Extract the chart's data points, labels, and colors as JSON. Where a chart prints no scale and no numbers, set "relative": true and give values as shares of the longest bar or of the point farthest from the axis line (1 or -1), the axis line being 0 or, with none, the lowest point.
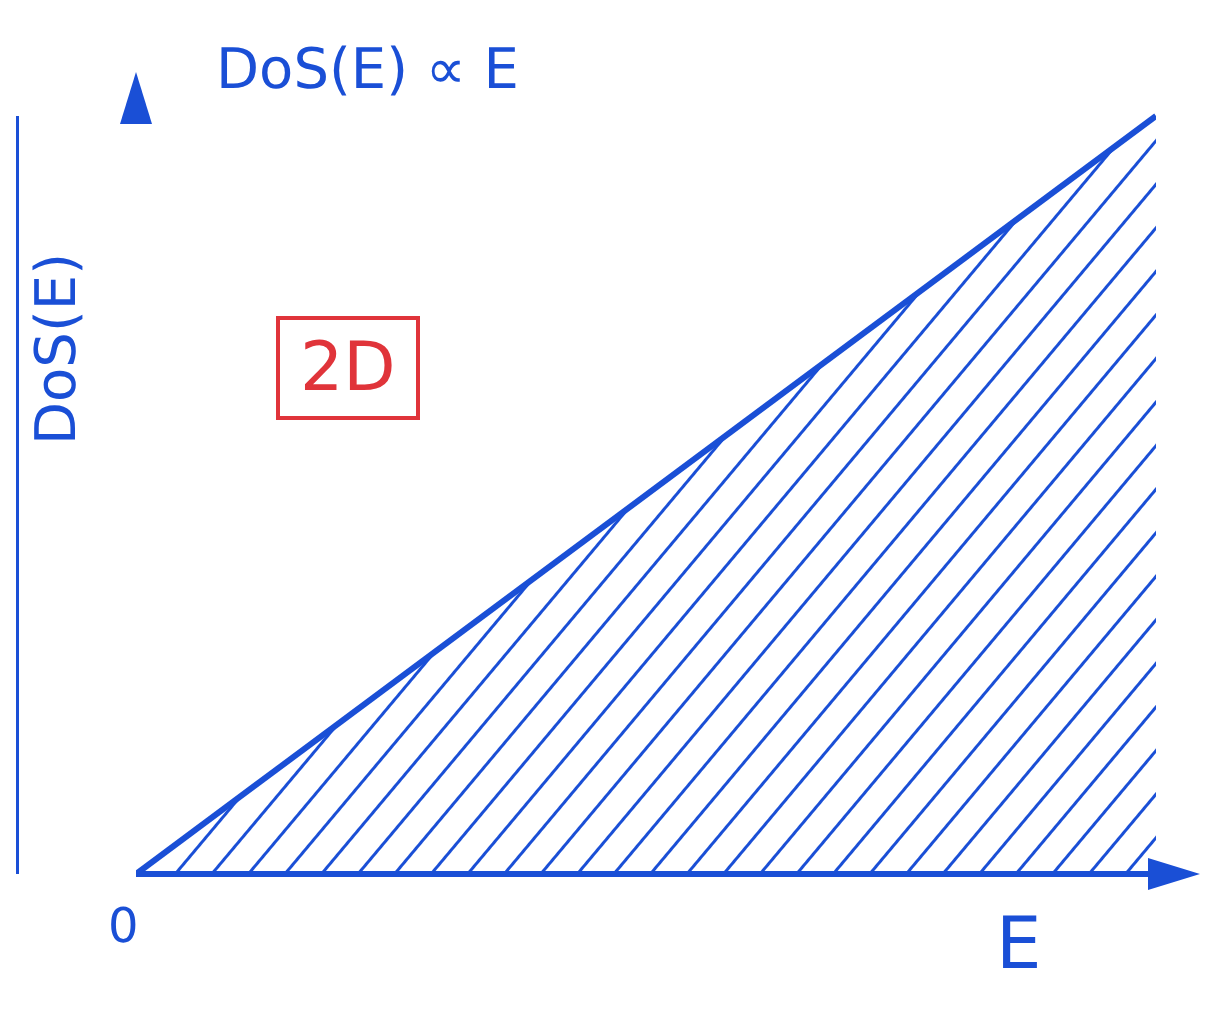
{
  "chart_data": {
    "type": "area",
    "title": "DoS(E) ∝ E",
    "xlabel": "E",
    "ylabel": "DoS(E)",
    "categories": [
      null,
      null
    ],
    "series": [
      {
        "color": "#1a4fd6",
        "values": [
          0,
          1
        ]
      }
    ],
    "relative": true,
    "annotations": [
      "2D",
      "0"
    ]
  }
}
